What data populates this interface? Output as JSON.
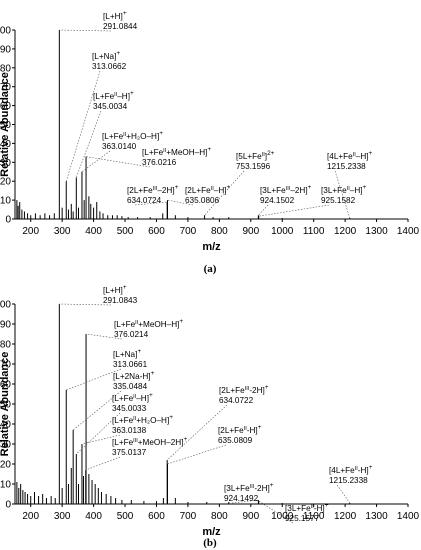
{
  "chart_data": [
    {
      "type": "bar",
      "panel_label": "(a)",
      "xlabel": "m/z",
      "ylabel": "Relative Abundance",
      "xlim": [
        150,
        1400
      ],
      "ylim": [
        0,
        100
      ],
      "xticks": [
        "200",
        "300",
        "400",
        "500",
        "600",
        "700",
        "800",
        "900",
        "1000",
        "1100",
        "1200",
        "1300",
        "1400"
      ],
      "yticks": [
        "0",
        "10",
        "20",
        "30",
        "40",
        "50",
        "60",
        "70",
        "80",
        "90",
        "100"
      ],
      "peaks": [
        {
          "x": 156,
          "y": 10
        },
        {
          "x": 160,
          "y": 7
        },
        {
          "x": 165,
          "y": 9
        },
        {
          "x": 172,
          "y": 5
        },
        {
          "x": 180,
          "y": 4
        },
        {
          "x": 190,
          "y": 3
        },
        {
          "x": 200,
          "y": 2
        },
        {
          "x": 215,
          "y": 3
        },
        {
          "x": 230,
          "y": 2
        },
        {
          "x": 245,
          "y": 3
        },
        {
          "x": 260,
          "y": 2
        },
        {
          "x": 275,
          "y": 3
        },
        {
          "x": 291,
          "y": 100
        },
        {
          "x": 300,
          "y": 6
        },
        {
          "x": 313,
          "y": 20
        },
        {
          "x": 320,
          "y": 5
        },
        {
          "x": 329,
          "y": 8
        },
        {
          "x": 335,
          "y": 4
        },
        {
          "x": 345,
          "y": 22
        },
        {
          "x": 352,
          "y": 6
        },
        {
          "x": 363,
          "y": 25
        },
        {
          "x": 370,
          "y": 10
        },
        {
          "x": 376,
          "y": 33
        },
        {
          "x": 385,
          "y": 12
        },
        {
          "x": 391,
          "y": 8
        },
        {
          "x": 400,
          "y": 6
        },
        {
          "x": 410,
          "y": 9
        },
        {
          "x": 420,
          "y": 4
        },
        {
          "x": 430,
          "y": 3
        },
        {
          "x": 445,
          "y": 2
        },
        {
          "x": 460,
          "y": 2
        },
        {
          "x": 475,
          "y": 2
        },
        {
          "x": 490,
          "y": 1.5
        },
        {
          "x": 510,
          "y": 1
        },
        {
          "x": 540,
          "y": 1
        },
        {
          "x": 580,
          "y": 1
        },
        {
          "x": 620,
          "y": 3
        },
        {
          "x": 634,
          "y": 9
        },
        {
          "x": 635,
          "y": 10
        },
        {
          "x": 660,
          "y": 2
        },
        {
          "x": 700,
          "y": 1
        },
        {
          "x": 753,
          "y": 2
        },
        {
          "x": 780,
          "y": 1
        },
        {
          "x": 830,
          "y": 1
        },
        {
          "x": 924,
          "y": 2
        },
        {
          "x": 925,
          "y": 1.5
        },
        {
          "x": 1000,
          "y": 0.5
        },
        {
          "x": 1215,
          "y": 0.5
        }
      ],
      "annotations": [
        {
          "label": "[L+H]",
          "sup": "+",
          "value": "291.0844",
          "peak_x": 291,
          "peak_y": 100
        },
        {
          "label": "[L+Na]",
          "sup": "+",
          "value": "313.0662",
          "peak_x": 313,
          "peak_y": 20
        },
        {
          "label": "[L+Fe",
          "label_sup": "II",
          "label_tail": "–H]",
          "sup": "+",
          "value": "345.0034",
          "peak_x": 345,
          "peak_y": 22
        },
        {
          "label": "[L+Fe",
          "label_sup": "II",
          "label_tail": "+H₂O–H]",
          "sup": "+",
          "value": "363.0140",
          "peak_x": 363,
          "peak_y": 25
        },
        {
          "label": "[L+Fe",
          "label_sup": "II",
          "label_tail": "+MeOH–H]",
          "sup": "+",
          "value": "376.0216",
          "peak_x": 376,
          "peak_y": 33
        },
        {
          "label": "[5L+Fe",
          "label_sup": "II",
          "label_tail": "]",
          "sup": "2+",
          "value": "753.1596",
          "peak_x": 753,
          "peak_y": 2
        },
        {
          "label": "[4L+Fe",
          "label_sup": "II",
          "label_tail": "–H]",
          "sup": "+",
          "value": "1215.2338",
          "peak_x": 1215,
          "peak_y": 0.5
        },
        {
          "label": "[2L+Fe",
          "label_sup": "III",
          "label_tail": "–2H]",
          "sup": "+",
          "value": "634.0724",
          "peak_x": 634,
          "peak_y": 9
        },
        {
          "label": "[2L+Fe",
          "label_sup": "II",
          "label_tail": "–H]",
          "sup": "+",
          "value": "635.0806",
          "peak_x": 635,
          "peak_y": 10
        },
        {
          "label": "[3L+Fe",
          "label_sup": "III",
          "label_tail": "–2H]",
          "sup": "+",
          "value": "924.1502",
          "peak_x": 924,
          "peak_y": 2
        },
        {
          "label": "[3L+Fe",
          "label_sup": "II",
          "label_tail": "–H]",
          "sup": "+",
          "value": "925.1582",
          "peak_x": 925,
          "peak_y": 1.5
        }
      ]
    },
    {
      "type": "bar",
      "panel_label": "(b)",
      "xlabel": "m/z",
      "ylabel": "Relative Abundance",
      "xlim": [
        150,
        1400
      ],
      "ylim": [
        0,
        100
      ],
      "xticks": [
        "200",
        "300",
        "400",
        "500",
        "600",
        "700",
        "800",
        "900",
        "1000",
        "1100",
        "1200",
        "1300",
        "1400"
      ],
      "yticks": [
        "0",
        "10",
        "20",
        "30",
        "40",
        "50",
        "60",
        "70",
        "80",
        "90",
        "100"
      ],
      "peaks": [
        {
          "x": 156,
          "y": 11
        },
        {
          "x": 162,
          "y": 8
        },
        {
          "x": 168,
          "y": 10
        },
        {
          "x": 175,
          "y": 7
        },
        {
          "x": 182,
          "y": 6
        },
        {
          "x": 190,
          "y": 5
        },
        {
          "x": 200,
          "y": 4
        },
        {
          "x": 212,
          "y": 6
        },
        {
          "x": 225,
          "y": 4
        },
        {
          "x": 238,
          "y": 5
        },
        {
          "x": 250,
          "y": 3
        },
        {
          "x": 265,
          "y": 4
        },
        {
          "x": 278,
          "y": 3
        },
        {
          "x": 291,
          "y": 100
        },
        {
          "x": 300,
          "y": 8
        },
        {
          "x": 313,
          "y": 57
        },
        {
          "x": 320,
          "y": 10
        },
        {
          "x": 329,
          "y": 18
        },
        {
          "x": 335,
          "y": 37
        },
        {
          "x": 345,
          "y": 25
        },
        {
          "x": 352,
          "y": 10
        },
        {
          "x": 363,
          "y": 30
        },
        {
          "x": 368,
          "y": 14
        },
        {
          "x": 375,
          "y": 17
        },
        {
          "x": 376,
          "y": 85
        },
        {
          "x": 385,
          "y": 15
        },
        {
          "x": 395,
          "y": 12
        },
        {
          "x": 405,
          "y": 10
        },
        {
          "x": 415,
          "y": 8
        },
        {
          "x": 425,
          "y": 6
        },
        {
          "x": 440,
          "y": 5
        },
        {
          "x": 455,
          "y": 4
        },
        {
          "x": 470,
          "y": 3
        },
        {
          "x": 490,
          "y": 2
        },
        {
          "x": 520,
          "y": 2
        },
        {
          "x": 560,
          "y": 1.5
        },
        {
          "x": 600,
          "y": 1.5
        },
        {
          "x": 622,
          "y": 3
        },
        {
          "x": 634,
          "y": 22
        },
        {
          "x": 635,
          "y": 20
        },
        {
          "x": 660,
          "y": 3
        },
        {
          "x": 700,
          "y": 1
        },
        {
          "x": 760,
          "y": 1
        },
        {
          "x": 830,
          "y": 1
        },
        {
          "x": 924,
          "y": 2
        },
        {
          "x": 925,
          "y": 1.5
        },
        {
          "x": 1000,
          "y": 0.5
        },
        {
          "x": 1215,
          "y": 0.5
        }
      ],
      "annotations": [
        {
          "label": "[L+H]",
          "sup": "+",
          "value": "291.0843",
          "peak_x": 291,
          "peak_y": 100
        },
        {
          "label": "[L+Fe",
          "label_sup": "II",
          "label_tail": "+MeOH–H]",
          "sup": "+",
          "value": "376.0214",
          "peak_x": 376,
          "peak_y": 85
        },
        {
          "label": "[L+Na]",
          "sup": "+",
          "value": "313.0661",
          "peak_x": 313,
          "peak_y": 57
        },
        {
          "label": "[L+2Na-H]",
          "sup": "+",
          "value": "335.0484",
          "peak_x": 335,
          "peak_y": 37
        },
        {
          "label": "[L+Fe",
          "label_sup": "II",
          "label_tail": "–H]",
          "sup": "+",
          "value": "345.0033",
          "peak_x": 345,
          "peak_y": 25
        },
        {
          "label": "[L+Fe",
          "label_sup": "II",
          "label_tail": "+H₂O–H]",
          "sup": "+",
          "value": "363.0138",
          "peak_x": 363,
          "peak_y": 30
        },
        {
          "label": "[L+Fe",
          "label_sup": "III",
          "label_tail": "+MeOH–2H]",
          "sup": "+",
          "value": "375.0137",
          "peak_x": 375,
          "peak_y": 17
        },
        {
          "label": "[2L+Fe",
          "label_sup": "III",
          "label_tail": "-2H]",
          "sup": "+",
          "value": "634.0722",
          "peak_x": 634,
          "peak_y": 22
        },
        {
          "label": "[2L+Fe",
          "label_sup": "II",
          "label_tail": "-H]",
          "sup": "+",
          "value": "635.0809",
          "peak_x": 635,
          "peak_y": 20
        },
        {
          "label": "[4L+Fe",
          "label_sup": "II",
          "label_tail": "-H]",
          "sup": "+",
          "value": "1215.2338",
          "peak_x": 1215,
          "peak_y": 0.5
        },
        {
          "label": "[3L+Fe",
          "label_sup": "III",
          "label_tail": "-2H]",
          "sup": "+",
          "value": "924.1492",
          "peak_x": 924,
          "peak_y": 2
        },
        {
          "label": "[3L+Fe",
          "label_sup": "II",
          "label_tail": "-H]",
          "sup": "+",
          "value": "925.1577",
          "peak_x": 925,
          "peak_y": 1.5
        }
      ]
    }
  ]
}
